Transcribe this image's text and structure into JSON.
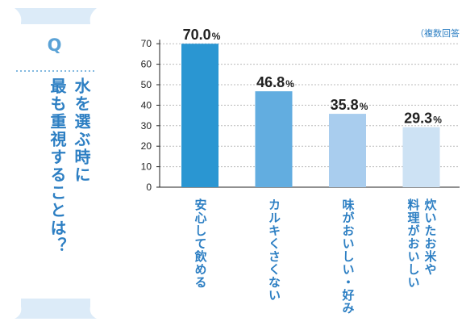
{
  "question": {
    "label": "Q",
    "text": "水を選ぶ時に\n最も重視することは？"
  },
  "note": "（複数回答",
  "colors": [
    "#2a96d2",
    "#62ade0",
    "#a9cdee",
    "#cde2f4"
  ],
  "chart_data": {
    "type": "bar",
    "categories": [
      "安心して飲める",
      "カルキくさくない",
      "味がおいしい・好み",
      "炊いたお米や\n料理がおいしい"
    ],
    "values": [
      70.0,
      46.8,
      35.8,
      29.3
    ],
    "value_labels": [
      "70.0",
      "46.8",
      "35.8",
      "29.3"
    ],
    "unit": "%",
    "yticks": [
      "0",
      "10",
      "20",
      "30",
      "40",
      "50",
      "60",
      "70"
    ],
    "ylim": [
      0,
      75
    ],
    "grid": true
  }
}
